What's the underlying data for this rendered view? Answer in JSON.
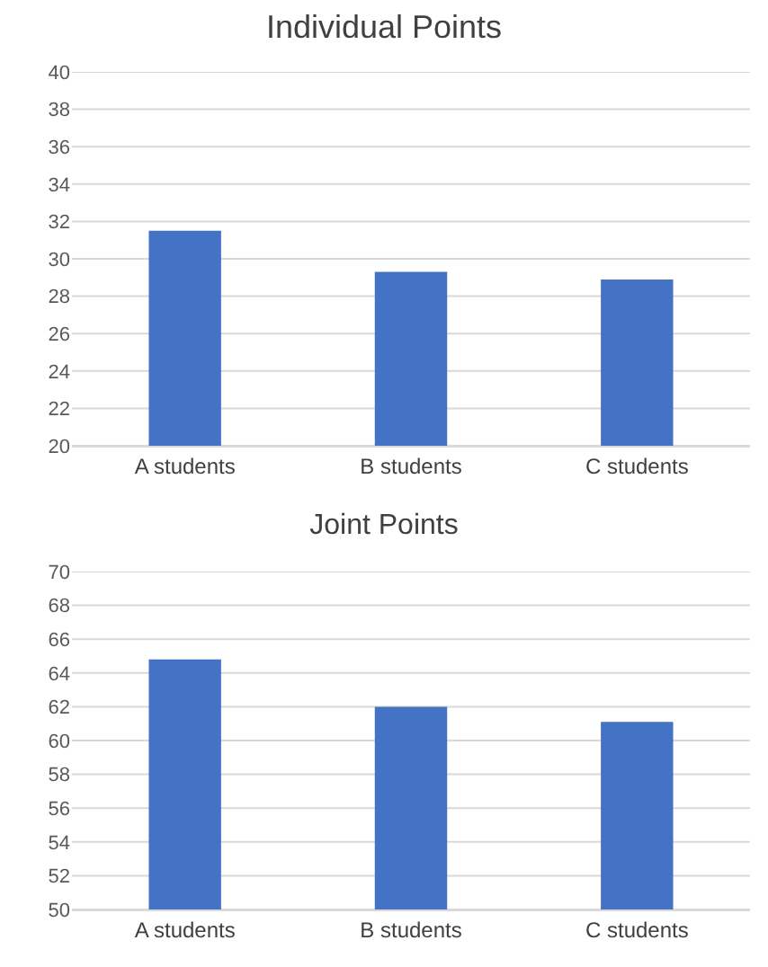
{
  "chart_data": [
    {
      "type": "bar",
      "title": "Individual Points",
      "categories": [
        "A students",
        "B students",
        "C students"
      ],
      "values": [
        31.5,
        29.3,
        28.9
      ],
      "color": "#4472c4",
      "ylim": [
        20,
        40
      ],
      "yticks": [
        20,
        22,
        24,
        26,
        28,
        30,
        32,
        34,
        36,
        38,
        40
      ],
      "grid": "y"
    },
    {
      "type": "bar",
      "title": "Joint Points",
      "categories": [
        "A students",
        "B students",
        "C students"
      ],
      "values": [
        64.8,
        62.0,
        61.1
      ],
      "color": "#4472c4",
      "ylim": [
        50,
        70
      ],
      "yticks": [
        50,
        52,
        54,
        56,
        58,
        60,
        62,
        64,
        66,
        68,
        70
      ],
      "grid": "y"
    }
  ]
}
